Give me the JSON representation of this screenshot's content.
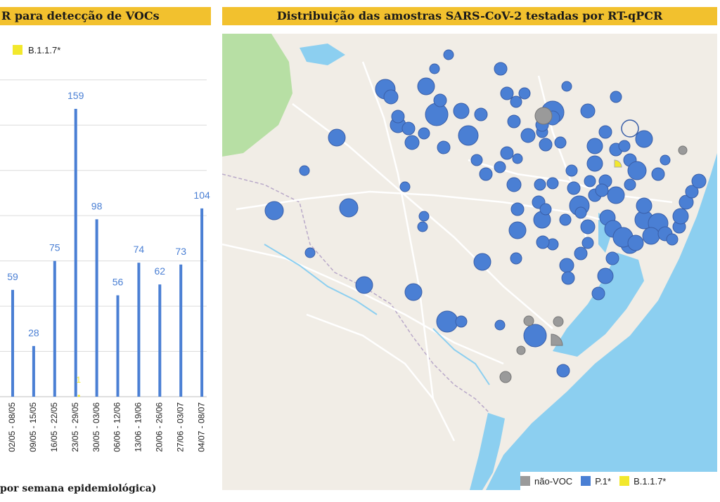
{
  "header": {
    "left_title": "R para detecção de VOCs",
    "right_title": "Distribuição das amostras SARS-CoV-2 testadas por RT-qPCR"
  },
  "chart_data": {
    "type": "bar",
    "legend": [
      {
        "name": "B.1.1.7*",
        "color": "#f2e82c"
      }
    ],
    "categories": [
      "02/05 - 08/05",
      "09/05 - 15/05",
      "16/05 - 22/05",
      "23/05 - 29/05",
      "30/05 - 03/06",
      "06/06 - 12/06",
      "13/06 - 19/06",
      "20/06 - 26/06",
      "27/06 - 03/07",
      "04/07 - 08/07"
    ],
    "series": [
      {
        "color": "#4a7fd4",
        "values": [
          59,
          28,
          75,
          159,
          98,
          56,
          74,
          62,
          73,
          104
        ]
      },
      {
        "name": "B.1.1.7*",
        "color": "#f2e82c",
        "values": [
          null,
          null,
          null,
          1,
          null,
          null,
          null,
          null,
          null,
          null
        ]
      }
    ],
    "ylim": [
      0,
      185
    ],
    "grid": true,
    "xlabel": "por semana epidemiológica)"
  },
  "map": {
    "legend": [
      {
        "label": "não-VOC",
        "color": "#9a9a9a"
      },
      {
        "label": "P.1*",
        "color": "#4a7fd4"
      },
      {
        "label": "B.1.1.7*",
        "color": "#f2e82c"
      }
    ],
    "colors": {
      "land": "#f1ede6",
      "water": "#8ccff0",
      "park": "#b7dfa4",
      "marker": "#4a7fd4",
      "marker_border": "#3a5fa8"
    }
  }
}
